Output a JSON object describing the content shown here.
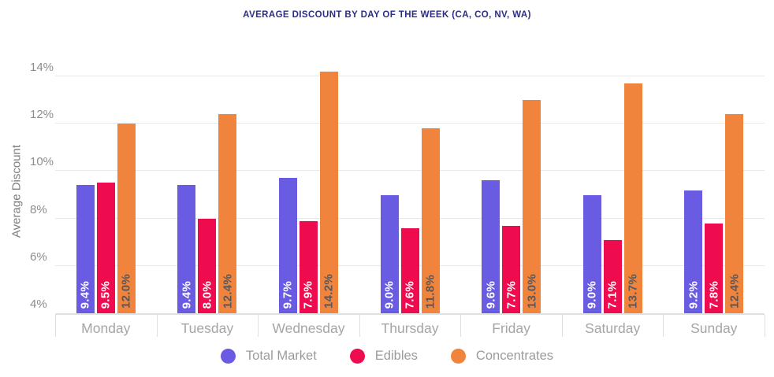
{
  "title": "AVERAGE DISCOUNT BY DAY OF THE WEEK (CA, CO, NV, WA)",
  "chart_data": {
    "type": "bar",
    "title": "AVERAGE DISCOUNT BY DAY OF THE WEEK (CA, CO, NV, WA)",
    "ylabel": "Average Discount",
    "ylim": [
      4,
      14.3
    ],
    "yticks": [
      4,
      6,
      8,
      10,
      12,
      14
    ],
    "ytick_labels": [
      "4%",
      "6%",
      "8%",
      "10%",
      "12%",
      "14%"
    ],
    "grid": true,
    "legend_position": "bottom",
    "categories": [
      "Monday",
      "Tuesday",
      "Wednesday",
      "Thursday",
      "Friday",
      "Saturday",
      "Sunday"
    ],
    "series": [
      {
        "name": "Total Market",
        "color": "#6A5CE2",
        "label_color": "#FFFFFF",
        "values": [
          9.4,
          9.4,
          9.7,
          9.0,
          9.6,
          9.0,
          9.2
        ],
        "value_labels": [
          "9.4%",
          "9.4%",
          "9.7%",
          "9.0%",
          "9.6%",
          "9.0%",
          "9.2%"
        ]
      },
      {
        "name": "Edibles",
        "color": "#EE0C4E",
        "label_color": "#FFFFFF",
        "values": [
          9.5,
          8.0,
          7.9,
          7.6,
          7.7,
          7.1,
          7.8
        ],
        "value_labels": [
          "9.5%",
          "8.0%",
          "7.9%",
          "7.6%",
          "7.7%",
          "7.1%",
          "7.8%"
        ]
      },
      {
        "name": "Concentrates",
        "color": "#F0843C",
        "label_color": "#58585C",
        "values": [
          12.0,
          12.4,
          14.2,
          11.8,
          13.0,
          13.7,
          12.4
        ],
        "value_labels": [
          "12.0%",
          "12.4%",
          "14.2%",
          "11.8%",
          "13.0%",
          "13.7%",
          "12.4%"
        ]
      }
    ]
  },
  "colors": {
    "title": "#2B2E87",
    "grid": "#E9E9E9",
    "axis": "#E0E0E0",
    "ytick_text": "#8C8C8C",
    "xtick_text": "#A5A5A5",
    "axis_title_text": "#7E7E7E",
    "legend_text": "#9B9B9B",
    "background": "#FFFFFF"
  },
  "legend": [
    {
      "label": "Total Market"
    },
    {
      "label": "Edibles"
    },
    {
      "label": "Concentrates"
    }
  ]
}
